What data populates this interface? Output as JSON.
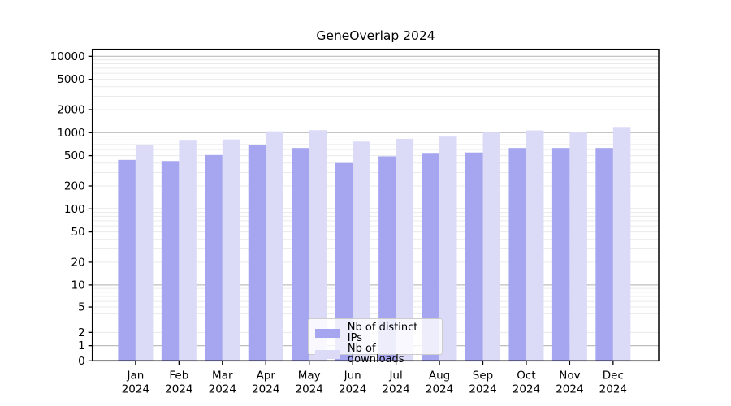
{
  "title": "GeneOverlap 2024",
  "legend": {
    "items": [
      {
        "label": "Nb of distinct IPs",
        "color": "#a5a5f0"
      },
      {
        "label": "Nb of downloads",
        "color": "#dbdbf8"
      }
    ]
  },
  "chart_data": {
    "type": "bar",
    "title": "GeneOverlap 2024",
    "categories": [
      "Jan 2024",
      "Feb 2024",
      "Mar 2024",
      "Apr 2024",
      "May 2024",
      "Jun 2024",
      "Jul 2024",
      "Aug 2024",
      "Sep 2024",
      "Oct 2024",
      "Nov 2024",
      "Dec 2024"
    ],
    "series": [
      {
        "name": "Nb of distinct IPs",
        "color": "#a5a5f0",
        "values": [
          440,
          425,
          510,
          690,
          630,
          400,
          490,
          530,
          550,
          630,
          630,
          630
        ]
      },
      {
        "name": "Nb of downloads",
        "color": "#dbdbf8",
        "values": [
          690,
          785,
          815,
          1040,
          1080,
          765,
          830,
          890,
          1005,
          1070,
          1020,
          1160
        ]
      }
    ],
    "xlabel": "",
    "ylabel": "",
    "yscale": "asinh (log-like scale including 0)",
    "ytick_labels": [
      "10000",
      "5000",
      "2000",
      "1000",
      "500",
      "200",
      "100",
      "50",
      "20",
      "10",
      "5",
      "2",
      "1",
      "0"
    ],
    "yticks": [
      10000,
      5000,
      2000,
      1000,
      500,
      200,
      100,
      50,
      20,
      10,
      5,
      2,
      1,
      0
    ],
    "ylim": [
      0,
      12300
    ],
    "grid": true,
    "legend_position": "lower center"
  },
  "colors": {
    "major_grid": "#bdbdbd",
    "minor_grid": "#eaeaea",
    "spine": "#000000",
    "tick_text": "#000000"
  }
}
